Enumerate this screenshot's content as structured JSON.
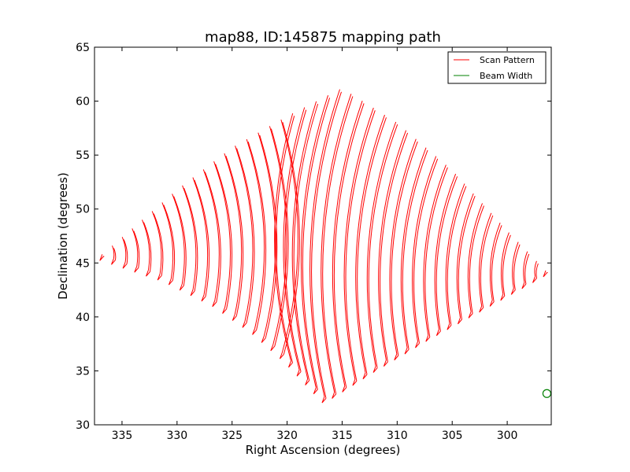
{
  "chart_data": {
    "type": "line",
    "title": "map88, ID:145875 mapping path",
    "xlabel": "Right Ascension (degrees)",
    "ylabel": "Declination (degrees)",
    "xlim": [
      337.5,
      296.0
    ],
    "ylim": [
      30,
      65
    ],
    "xticks": [
      335,
      330,
      325,
      320,
      315,
      310,
      305,
      300
    ],
    "yticks": [
      30,
      35,
      40,
      45,
      50,
      55,
      60,
      65
    ],
    "legend_position": "top-right",
    "series": [
      {
        "name": "Scan Pattern",
        "color": "#ff0000",
        "description": "raster scan: ~44 nearly parallel arcs from lower-left to upper-right",
        "bottom_edge": [
          [
            336.8,
            45.8
          ],
          [
            331.0,
            43.8
          ],
          [
            326.5,
            41.5
          ],
          [
            323.0,
            39.0
          ],
          [
            320.0,
            36.3
          ],
          [
            316.5,
            32.5
          ]
        ],
        "top_edge": [
          [
            336.8,
            45.8
          ],
          [
            330.0,
            51.8
          ],
          [
            325.0,
            55.7
          ],
          [
            320.0,
            58.6
          ],
          [
            315.0,
            61.2
          ]
        ],
        "right_edge": [
          [
            315.0,
            61.2
          ],
          [
            310.0,
            58.0
          ],
          [
            305.0,
            53.6
          ],
          [
            300.0,
            48.0
          ],
          [
            296.5,
            44.3
          ]
        ],
        "lower_right_edge": [
          [
            316.5,
            32.5
          ],
          [
            312.0,
            35.4
          ],
          [
            307.0,
            38.4
          ],
          [
            302.0,
            41.2
          ],
          [
            296.5,
            44.3
          ]
        ],
        "num_scans": 44
      },
      {
        "name": "Beam Width",
        "color": "#008000",
        "marker": "circle",
        "x": [
          296.4
        ],
        "y": [
          32.9
        ]
      }
    ]
  }
}
